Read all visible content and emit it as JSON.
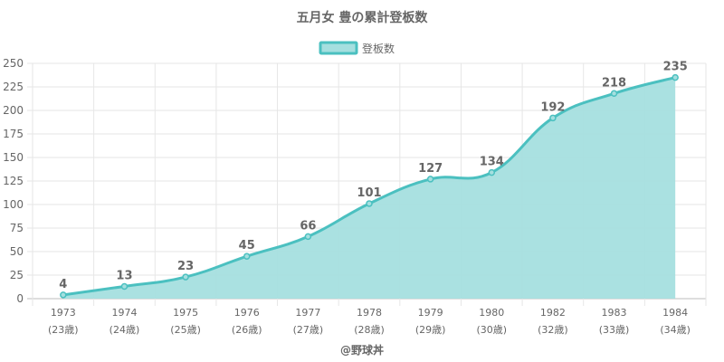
{
  "chart_data": {
    "type": "area",
    "title": "五月女 豊の累計登板数",
    "legend": {
      "label": "登板数",
      "position": "top"
    },
    "x": [
      "1973",
      "1974",
      "1975",
      "1976",
      "1977",
      "1978",
      "1979",
      "1980",
      "1982",
      "1983",
      "1984"
    ],
    "x_sublabels": [
      "(23歳)",
      "(24歳)",
      "(25歳)",
      "(26歳)",
      "(27歳)",
      "(28歳)",
      "(29歳)",
      "(30歳)",
      "(32歳)",
      "(33歳)",
      "(34歳)"
    ],
    "series": [
      {
        "name": "登板数",
        "values": [
          4,
          13,
          23,
          45,
          66,
          101,
          127,
          134,
          192,
          218,
          235
        ]
      }
    ],
    "ylim": [
      0,
      250
    ],
    "yticks": [
      0,
      25,
      50,
      75,
      100,
      125,
      150,
      175,
      200,
      225,
      250
    ],
    "grid": true,
    "colors": {
      "line": "#4bc0c0",
      "fill": "#a5dfdf",
      "grid": "#e6e6e6",
      "text": "#666666"
    }
  },
  "footer": "@野球丼"
}
